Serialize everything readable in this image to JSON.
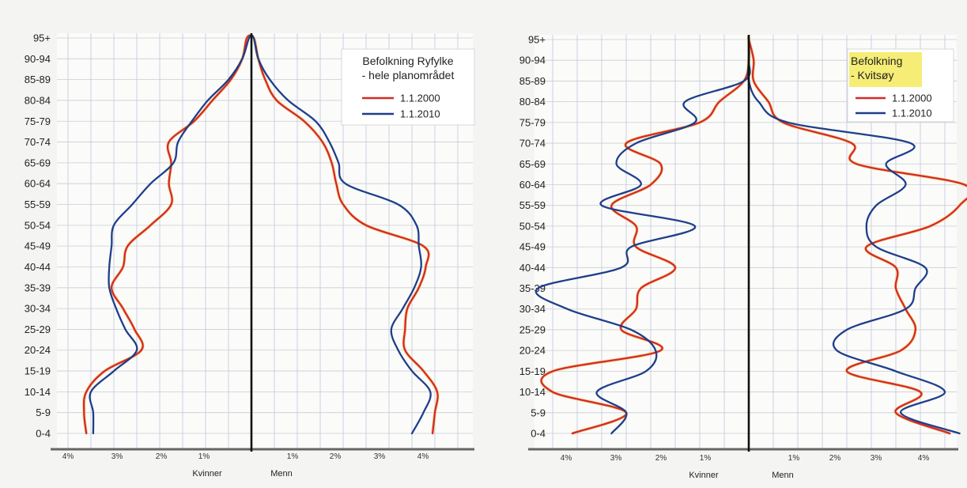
{
  "chart_data": [
    {
      "type": "line",
      "title": "",
      "legend": {
        "title_lines": [
          "Befolkning Ryfylke",
          "- hele planområdet"
        ],
        "placement": "top-right"
      },
      "age_groups": [
        "0-4",
        "5-9",
        "10-14",
        "15-19",
        "20-24",
        "25-29",
        "30-34",
        "35-39",
        "40-44",
        "45-49",
        "50-54",
        "55-59",
        "60-64",
        "65-69",
        "70-74",
        "75-79",
        "80-84",
        "85-89",
        "90-94",
        "95+"
      ],
      "x_tick_labels": [
        "4%",
        "3%",
        "2%",
        "1%",
        "1%",
        "2%",
        "3%",
        "4%"
      ],
      "x_range_percent": [
        -4.5,
        4.8
      ],
      "xlabel_left": "Kvinner",
      "xlabel_right": "Menn",
      "grid": true,
      "series": [
        {
          "name": "1.1.2000",
          "color": "#d42a2a",
          "kvinner": [
            3.6,
            3.65,
            3.6,
            3.2,
            2.4,
            2.55,
            2.8,
            3.05,
            2.8,
            2.7,
            2.2,
            1.75,
            1.8,
            1.75,
            1.8,
            1.25,
            0.85,
            0.45,
            0.2,
            0.1
          ],
          "menn": [
            3.95,
            4.0,
            4.05,
            3.75,
            3.35,
            3.35,
            3.4,
            3.65,
            3.8,
            3.75,
            2.5,
            2.0,
            1.85,
            1.75,
            1.55,
            1.15,
            0.55,
            0.3,
            0.15,
            0.05
          ]
        },
        {
          "name": "1.1.2010",
          "color": "#1e3f8a",
          "kvinner": [
            3.45,
            3.45,
            3.5,
            3.0,
            2.5,
            2.75,
            2.95,
            3.1,
            3.1,
            3.05,
            3.0,
            2.6,
            2.2,
            1.7,
            1.6,
            1.3,
            0.95,
            0.5,
            0.2,
            0.05
          ],
          "menn": [
            3.5,
            3.75,
            3.9,
            3.5,
            3.2,
            3.05,
            3.3,
            3.55,
            3.7,
            3.65,
            3.6,
            3.2,
            2.05,
            1.9,
            1.7,
            1.4,
            0.8,
            0.4,
            0.15,
            0.05
          ]
        }
      ]
    },
    {
      "type": "line",
      "title": "",
      "legend": {
        "title_lines": [
          "Befolkning",
          "- Kvitsøy"
        ],
        "placement": "top-right",
        "highlight_color": "#f3ea5d"
      },
      "age_groups": [
        "0-4",
        "5-9",
        "10-14",
        "15-19",
        "20-24",
        "25-29",
        "30-34",
        "35-39",
        "40-44",
        "45-49",
        "50-54",
        "55-59",
        "60-64",
        "65-69",
        "70-74",
        "75-79",
        "80-84",
        "85-89",
        "90-94",
        "95+"
      ],
      "x_tick_labels": [
        "4%",
        "3%",
        "2%",
        "1%",
        "1%",
        "2%",
        "3%",
        "4%"
      ],
      "x_range_percent": [
        -4.3,
        4.4
      ],
      "xlabel_left": "Kvinner",
      "xlabel_right": "Menn",
      "grid": true,
      "series": [
        {
          "name": "1.1.2000",
          "color": "#d42a2a",
          "kvinner": [
            3.6,
            2.5,
            4.0,
            4.0,
            1.8,
            2.6,
            2.3,
            2.2,
            1.5,
            2.3,
            2.3,
            2.8,
            2.0,
            1.8,
            2.5,
            1.0,
            0.6,
            0.1,
            0.0,
            0.0
          ],
          "menn": [
            4.1,
            3.0,
            3.5,
            2.0,
            3.1,
            3.4,
            3.2,
            3.0,
            3.0,
            2.4,
            3.7,
            4.3,
            4.4,
            2.2,
            2.1,
            0.7,
            0.4,
            0.1,
            0.1,
            0.0
          ]
        },
        {
          "name": "1.1.2010",
          "color": "#1e3f8a",
          "kvinner": [
            2.8,
            2.5,
            3.1,
            2.1,
            1.9,
            2.4,
            3.7,
            4.3,
            2.6,
            2.4,
            1.1,
            3.0,
            2.2,
            2.7,
            2.3,
            1.1,
            1.3,
            0.1,
            0.0,
            0.0
          ],
          "menn": [
            4.3,
            3.1,
            4.0,
            3.0,
            1.8,
            2.0,
            3.2,
            3.4,
            3.6,
            2.6,
            2.4,
            2.6,
            3.2,
            2.8,
            3.3,
            0.8,
            0.2,
            0.0,
            0.0,
            0.0
          ]
        }
      ]
    }
  ]
}
